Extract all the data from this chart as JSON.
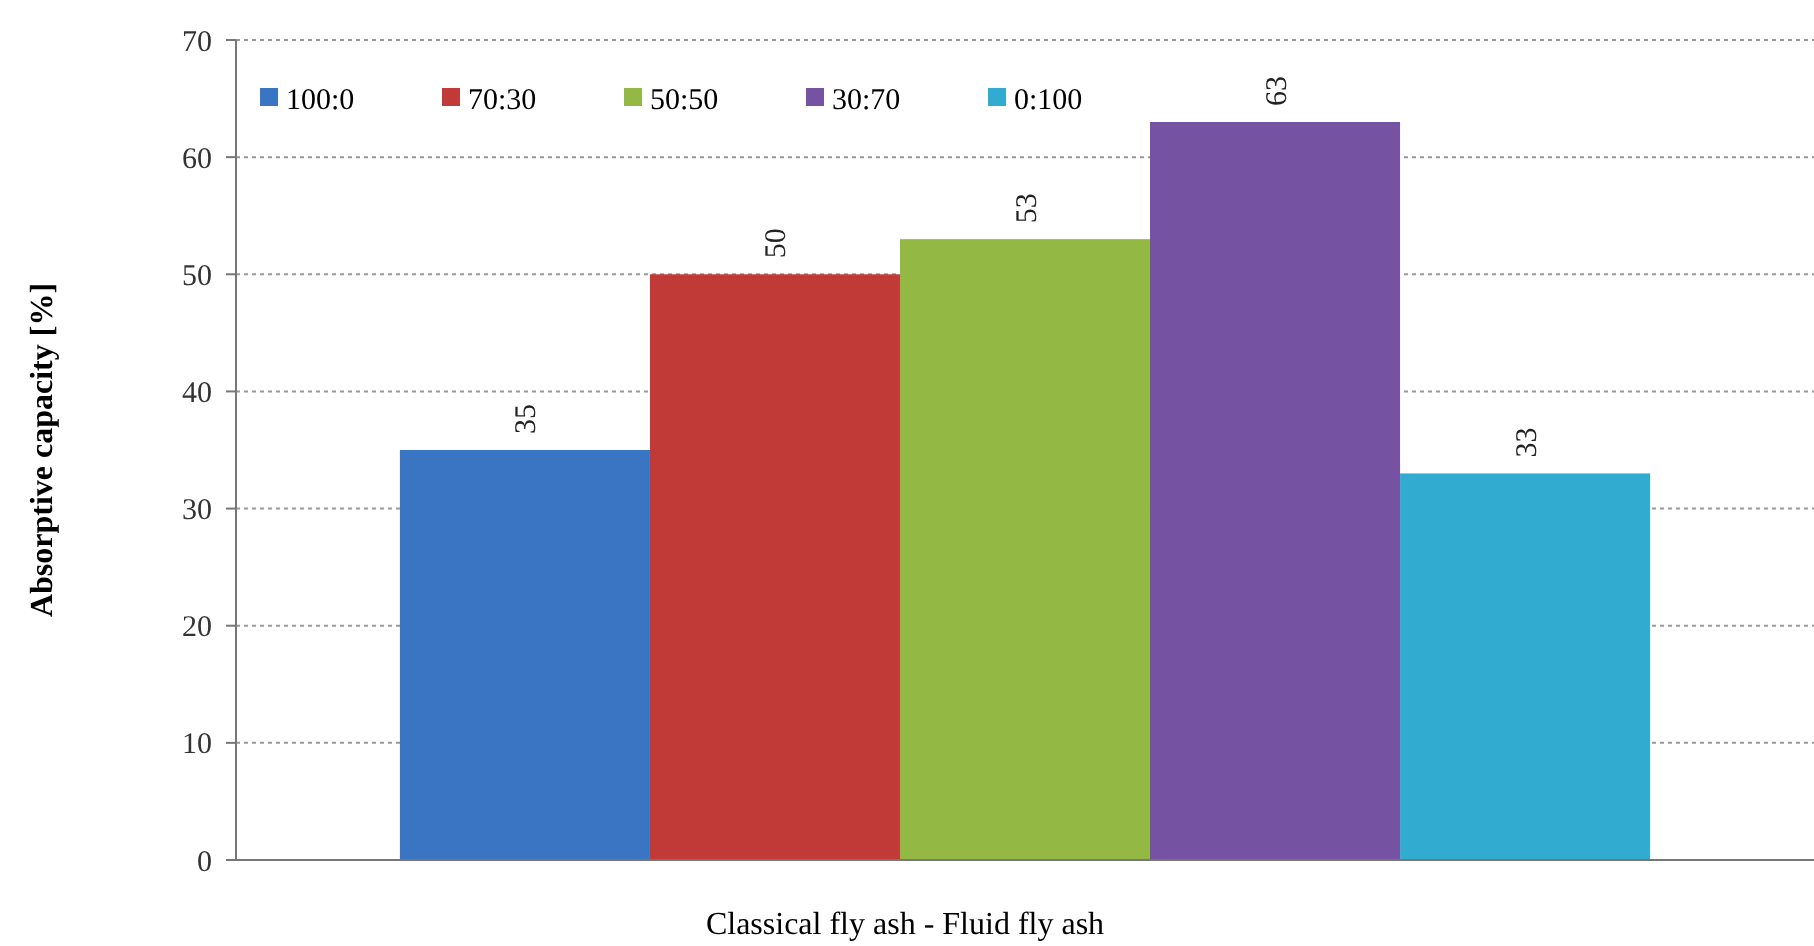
{
  "chart_data": {
    "type": "bar",
    "xlabel": "Classical fly ash - Fluid fly ash",
    "ylabel": "Absorptive capacity [%]",
    "categories": [
      null
    ],
    "series": [
      {
        "name": "100:0",
        "color": "#3a75c4",
        "values": [
          35
        ]
      },
      {
        "name": "70:30",
        "color": "#c23a38",
        "values": [
          50
        ]
      },
      {
        "name": "50:50",
        "color": "#93b843",
        "values": [
          53
        ]
      },
      {
        "name": "30:70",
        "color": "#7552a2",
        "values": [
          63
        ]
      },
      {
        "name": "0:100",
        "color": "#31abcf",
        "values": [
          33
        ]
      }
    ],
    "ylim": [
      0,
      70
    ],
    "yticks": [
      0,
      10,
      20,
      30,
      40,
      50,
      60,
      70
    ],
    "grid": "y",
    "legend": "top left",
    "data_labels": true
  }
}
